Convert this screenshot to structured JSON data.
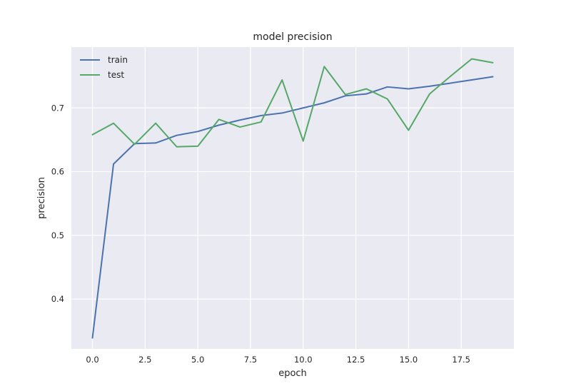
{
  "chart_data": {
    "type": "line",
    "title": "model precision",
    "xlabel": "epoch",
    "ylabel": "precision",
    "xlim": [
      -1,
      20
    ],
    "ylim": [
      0.3218,
      0.7955
    ],
    "grid": true,
    "legend_position": "top-left",
    "xticks": [
      0,
      2.5,
      5,
      7.5,
      10,
      12.5,
      15,
      17.5
    ],
    "xtick_labels": [
      "0.0",
      "2.5",
      "5.0",
      "7.5",
      "10.0",
      "12.5",
      "15.0",
      "17.5"
    ],
    "yticks": [
      0.4,
      0.5,
      0.6,
      0.7
    ],
    "ytick_labels": [
      "0.4",
      "0.5",
      "0.6",
      "0.7"
    ],
    "x": [
      0,
      1,
      2,
      3,
      4,
      5,
      6,
      7,
      8,
      9,
      10,
      11,
      12,
      13,
      14,
      15,
      16,
      17,
      18,
      19
    ],
    "series": [
      {
        "name": "train",
        "color": "#4c72b0",
        "values": [
          0.339,
          0.612,
          0.644,
          0.645,
          0.657,
          0.663,
          0.673,
          0.681,
          0.688,
          0.692,
          0.7,
          0.708,
          0.719,
          0.722,
          0.733,
          0.73,
          0.734,
          0.739,
          0.744,
          0.749
        ]
      },
      {
        "name": "test",
        "color": "#55a868",
        "values": [
          0.658,
          0.676,
          0.643,
          0.676,
          0.639,
          0.64,
          0.682,
          0.67,
          0.678,
          0.744,
          0.648,
          0.765,
          0.721,
          0.73,
          0.714,
          0.665,
          0.722,
          0.75,
          0.777,
          0.771
        ]
      }
    ]
  }
}
